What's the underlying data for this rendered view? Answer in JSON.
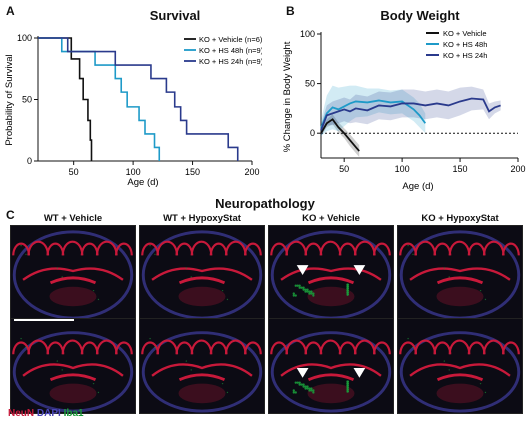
{
  "panels": {
    "a": {
      "letter": "A",
      "title": "Survival",
      "xlabel": "Age (d)",
      "ylabel": "Probability of Survival"
    },
    "b": {
      "letter": "B",
      "title": "Body Weight",
      "xlabel": "Age (d)",
      "ylabel": "% Change in Body Weight"
    },
    "c": {
      "letter": "C",
      "title": "Neuropathology",
      "columns": [
        "WT + Vehicle",
        "WT + HypoxyStat",
        "KO + Vehicle",
        "KO + HypoxyStat"
      ],
      "stain_legend": {
        "neun": "NeuN",
        "dapi": "DAPI",
        "iba1": "Iba1"
      },
      "colors": {
        "neun": "#c8193a",
        "dapi": "#4a46b8",
        "iba1": "#1a9a3a"
      }
    }
  },
  "chart_data": [
    {
      "type": "line",
      "title": "Survival",
      "xlabel": "Age (d)",
      "ylabel": "Probability of Survival",
      "xlim": [
        20,
        200
      ],
      "ylim": [
        0,
        100
      ],
      "xticks": [
        50,
        100,
        150,
        200
      ],
      "yticks": [
        0,
        50,
        100
      ],
      "legend_position": "top-right",
      "step": true,
      "series": [
        {
          "name": "KO + Vehicle (n=6)",
          "color": "#111111",
          "x": [
            20,
            48,
            48,
            55,
            55,
            58,
            58,
            62,
            62,
            64,
            64,
            65,
            65
          ],
          "y": [
            100,
            100,
            83,
            83,
            67,
            67,
            50,
            50,
            33,
            33,
            17,
            17,
            0
          ]
        },
        {
          "name": "KO + HS 48h (n=9)",
          "color": "#1e9ac8",
          "x": [
            20,
            40,
            40,
            55,
            55,
            68,
            68,
            85,
            85,
            90,
            90,
            95,
            95,
            105,
            105,
            110,
            110,
            118,
            118,
            122,
            122
          ],
          "y": [
            100,
            100,
            89,
            89,
            89,
            89,
            78,
            78,
            67,
            67,
            56,
            56,
            44,
            44,
            33,
            33,
            22,
            22,
            11,
            11,
            0
          ]
        },
        {
          "name": "KO + HS 24h (n=9)",
          "color": "#2a3a8c",
          "x": [
            20,
            45,
            45,
            85,
            85,
            115,
            115,
            128,
            128,
            135,
            135,
            140,
            140,
            145,
            145,
            180,
            180,
            188,
            188
          ],
          "y": [
            100,
            100,
            89,
            89,
            78,
            78,
            67,
            67,
            56,
            56,
            44,
            44,
            33,
            33,
            22,
            22,
            11,
            11,
            0
          ]
        }
      ]
    },
    {
      "type": "line",
      "title": "Body Weight",
      "xlabel": "Age (d)",
      "ylabel": "% Change in Body Weight",
      "xlim": [
        30,
        200
      ],
      "ylim": [
        -25,
        100
      ],
      "xticks": [
        50,
        100,
        150,
        200
      ],
      "yticks": [
        0,
        50,
        100
      ],
      "reference_line_y": 0,
      "legend_position": "top-right",
      "series": [
        {
          "name": "KO + Vehicle",
          "color": "#111111",
          "x": [
            30,
            35,
            40,
            45,
            50,
            55,
            60,
            63
          ],
          "y": [
            0,
            10,
            14,
            6,
            0,
            -7,
            -14,
            -18
          ],
          "band": [
            3,
            4,
            5,
            5,
            5,
            6,
            6,
            6
          ]
        },
        {
          "name": "KO + HS 48h",
          "color": "#1e9ac8",
          "x": [
            30,
            35,
            40,
            45,
            50,
            55,
            60,
            70,
            80,
            90,
            100,
            110,
            115,
            120
          ],
          "y": [
            5,
            20,
            26,
            24,
            27,
            30,
            32,
            31,
            33,
            31,
            32,
            24,
            18,
            10
          ],
          "band": [
            8,
            18,
            22,
            22,
            20,
            18,
            16,
            14,
            12,
            12,
            12,
            12,
            12,
            10
          ]
        },
        {
          "name": "KO + HS 24h",
          "color": "#2a3a8c",
          "x": [
            30,
            35,
            40,
            45,
            50,
            55,
            60,
            70,
            80,
            90,
            100,
            110,
            120,
            130,
            140,
            150,
            160,
            170,
            175,
            180,
            185
          ],
          "y": [
            3,
            18,
            20,
            22,
            24,
            22,
            25,
            23,
            28,
            27,
            30,
            30,
            28,
            30,
            28,
            32,
            35,
            34,
            22,
            26,
            28
          ],
          "band": [
            6,
            10,
            12,
            12,
            12,
            12,
            14,
            14,
            14,
            14,
            14,
            14,
            14,
            14,
            14,
            14,
            12,
            10,
            8,
            6,
            5
          ]
        }
      ]
    }
  ]
}
